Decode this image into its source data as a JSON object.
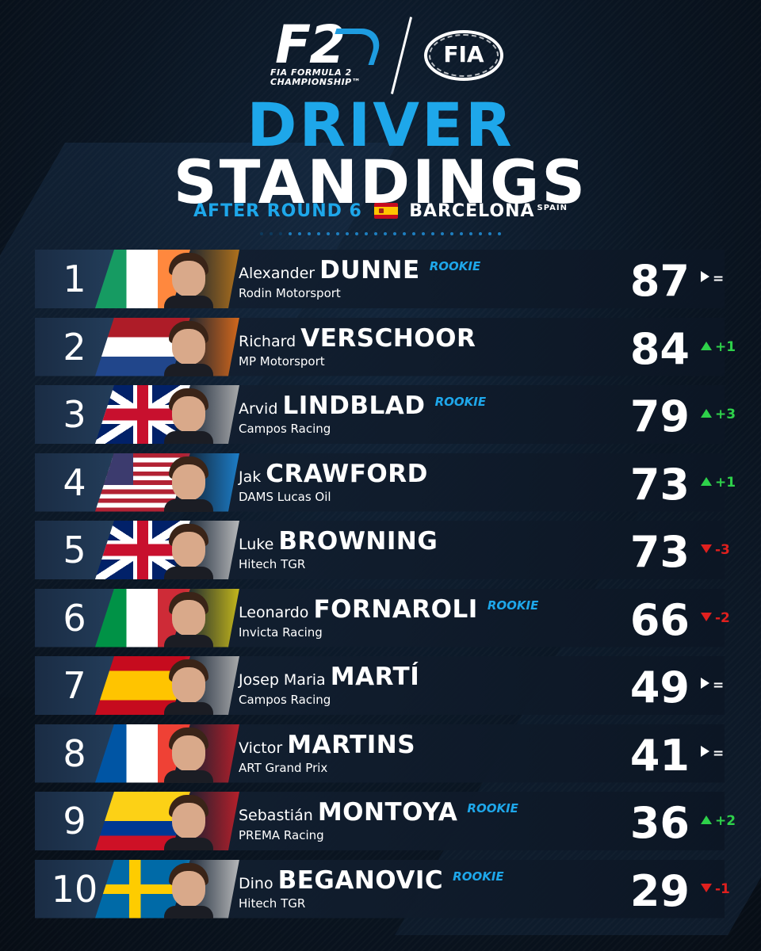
{
  "header": {
    "f2_logo_text": "F2",
    "f2_logo_subtext": "FIA FORMULA 2 CHAMPIONSHIP™",
    "fia_logo_text": "FIA"
  },
  "title": {
    "line1": "DRIVER",
    "line2": "STANDINGS",
    "subtitle_prefix": "AFTER ROUND 6",
    "location": "BARCELONA",
    "country": "SPAIN"
  },
  "colors": {
    "accent_blue": "#1ea7ea",
    "up_green": "#2ed14a",
    "down_red": "#e0201e",
    "background": "#0a1522"
  },
  "standings": [
    {
      "position": "1",
      "first_name": "Alexander",
      "last_name": "DUNNE",
      "rookie": "ROOKIE",
      "team": "Rodin Motorsport",
      "points": "87",
      "change": "=",
      "direction": "same",
      "flag": "ireland",
      "team_color": "#c07a1a"
    },
    {
      "position": "2",
      "first_name": "Richard",
      "last_name": "VERSCHOOR",
      "rookie": "",
      "team": "MP Motorsport",
      "points": "84",
      "change": "+1",
      "direction": "up",
      "flag": "netherlands",
      "team_color": "#e8701a"
    },
    {
      "position": "3",
      "first_name": "Arvid",
      "last_name": "LINDBLAD",
      "rookie": "ROOKIE",
      "team": "Campos Racing",
      "points": "79",
      "change": "+3",
      "direction": "up",
      "flag": "great-britain",
      "team_color": "#b8b8b8"
    },
    {
      "position": "4",
      "first_name": "Jak",
      "last_name": "CRAWFORD",
      "rookie": "",
      "team": "DAMS Lucas Oil",
      "points": "73",
      "change": "+1",
      "direction": "up",
      "flag": "usa",
      "team_color": "#1e88d8"
    },
    {
      "position": "5",
      "first_name": "Luke",
      "last_name": "BROWNING",
      "rookie": "",
      "team": "Hitech TGR",
      "points": "73",
      "change": "-3",
      "direction": "down",
      "flag": "great-britain",
      "team_color": "#c8c8c8"
    },
    {
      "position": "6",
      "first_name": "Leonardo",
      "last_name": "FORNAROLI",
      "rookie": "ROOKIE",
      "team": "Invicta Racing",
      "points": "66",
      "change": "-2",
      "direction": "down",
      "flag": "italy",
      "team_color": "#d8c81a"
    },
    {
      "position": "7",
      "first_name": "Josep Maria",
      "last_name": "MARTÍ",
      "rookie": "",
      "team": "Campos Racing",
      "points": "49",
      "change": "=",
      "direction": "same",
      "flag": "spain",
      "team_color": "#b8b8b8"
    },
    {
      "position": "8",
      "first_name": "Victor",
      "last_name": "MARTINS",
      "rookie": "",
      "team": "ART Grand Prix",
      "points": "41",
      "change": "=",
      "direction": "same",
      "flag": "france",
      "team_color": "#c8202a"
    },
    {
      "position": "9",
      "first_name": "Sebastián",
      "last_name": "MONTOYA",
      "rookie": "ROOKIE",
      "team": "PREMA Racing",
      "points": "36",
      "change": "+2",
      "direction": "up",
      "flag": "colombia",
      "team_color": "#c8202a"
    },
    {
      "position": "10",
      "first_name": "Dino",
      "last_name": "BEGANOVIC",
      "rookie": "ROOKIE",
      "team": "Hitech TGR",
      "points": "29",
      "change": "-1",
      "direction": "down",
      "flag": "sweden",
      "team_color": "#c8c8c8"
    }
  ]
}
